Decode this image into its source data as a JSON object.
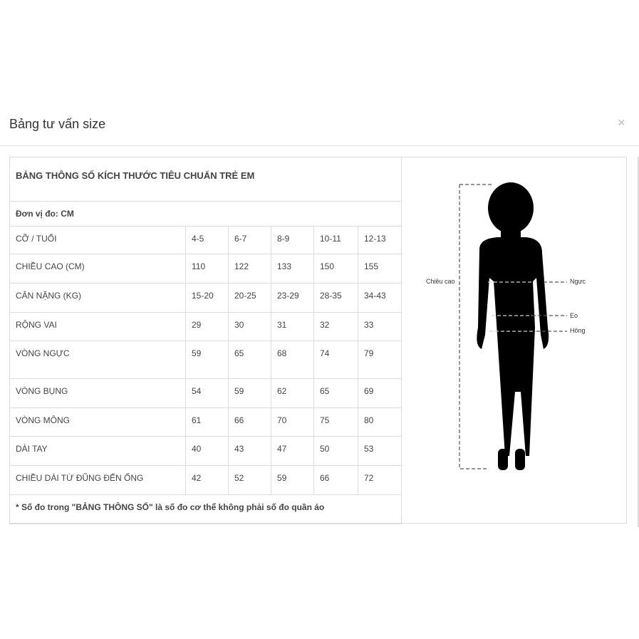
{
  "modal": {
    "title": "Bảng tư vấn size",
    "close": "×"
  },
  "table": {
    "title": "BẢNG THÔNG SỐ KÍCH THƯỚC TIÊU CHUẨN TRẺ EM",
    "unit": "Đơn vị đo: CM",
    "rows": [
      {
        "label": "CỠ / TUỔI",
        "values": [
          "4-5",
          "6-7",
          "8-9",
          "10-11",
          "12-13"
        ]
      },
      {
        "label": "CHIỀU CAO (CM)",
        "values": [
          "110",
          "122",
          "133",
          "150",
          "155"
        ]
      },
      {
        "label": "CÂN NẶNG (KG)",
        "values": [
          "15-20",
          "20-25",
          "23-29",
          "28-35",
          "34-43"
        ]
      },
      {
        "label": "RỘNG VAI",
        "values": [
          "29",
          "30",
          "31",
          "32",
          "33"
        ]
      },
      {
        "label": "VÒNG NGỰC",
        "values": [
          "59",
          "65",
          "68",
          "74",
          "79"
        ]
      },
      {
        "label": "VÒNG BỤNG",
        "values": [
          "54",
          "59",
          "62",
          "65",
          "69"
        ]
      },
      {
        "label": "VÒNG MÔNG",
        "values": [
          "61",
          "66",
          "70",
          "75",
          "80"
        ]
      },
      {
        "label": "DÀI TAY",
        "values": [
          "40",
          "43",
          "47",
          "50",
          "53"
        ]
      },
      {
        "label": "CHIỀU DÀI TỪ ĐŨNG ĐẾN ỐNG",
        "values": [
          "42",
          "52",
          "59",
          "66",
          "72"
        ]
      }
    ],
    "footnote": "* Số đo trong \"BẢNG THÔNG SỐ\" là số đo cơ thể không phải số đo quần áo"
  },
  "figure": {
    "height": "Chiều cao",
    "chest": "Ngực",
    "waist": "Eo",
    "hip": "Hông"
  }
}
